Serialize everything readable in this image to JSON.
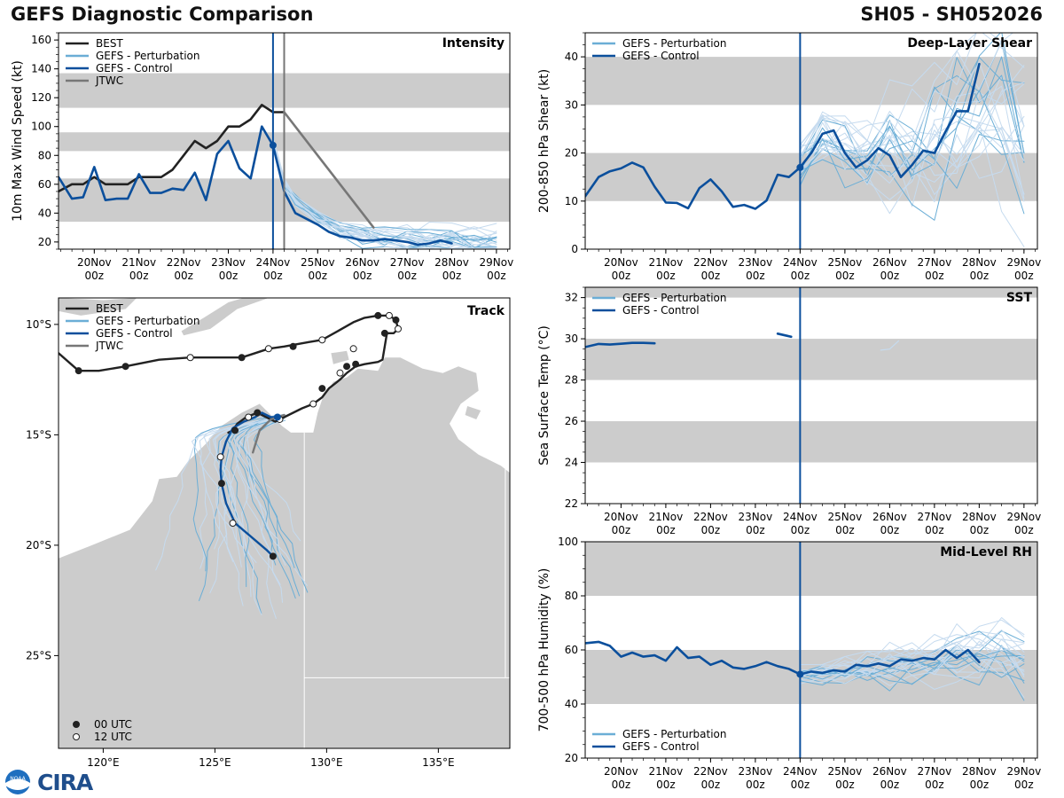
{
  "header": {
    "title_left": "GEFS Diagnostic Comparison",
    "title_right": "SH05 - SH052026"
  },
  "branding": {
    "logo_text": "CIRA",
    "noaa_text": "NOAA"
  },
  "colors": {
    "best": "#222222",
    "perturbation": "#6baed6",
    "control": "#0b4f9c",
    "jtwc": "#777777",
    "band": "#cccccc",
    "land": "#cccccc",
    "perturbation_faint": "#c6dbef"
  },
  "time_axis": {
    "start_day": 19.2,
    "end_day": 29.3,
    "now_day": 24.0,
    "ticks": [
      {
        "day": 20,
        "label": "20Nov",
        "label2": "00z"
      },
      {
        "day": 21,
        "label": "21Nov",
        "label2": "00z"
      },
      {
        "day": 22,
        "label": "22Nov",
        "label2": "00z"
      },
      {
        "day": 23,
        "label": "23Nov",
        "label2": "00z"
      },
      {
        "day": 24,
        "label": "24Nov",
        "label2": "00z"
      },
      {
        "day": 25,
        "label": "25Nov",
        "label2": "00z"
      },
      {
        "day": 26,
        "label": "26Nov",
        "label2": "00z"
      },
      {
        "day": 27,
        "label": "27Nov",
        "label2": "00z"
      },
      {
        "day": 28,
        "label": "28Nov",
        "label2": "00z"
      },
      {
        "day": 29,
        "label": "29Nov",
        "label2": "00z"
      }
    ]
  },
  "chart_data": [
    {
      "type": "line",
      "id": "intensity",
      "title": "Intensity",
      "ylabel": "10m Max Wind Speed (kt)",
      "ylim": [
        15,
        165
      ],
      "yticks": [
        20,
        40,
        60,
        80,
        100,
        120,
        140,
        160
      ],
      "bands": [
        [
          34,
          64
        ],
        [
          83,
          96
        ],
        [
          113,
          137
        ]
      ],
      "jtwc_vline_day": 24.25,
      "legend": [
        "BEST",
        "GEFS - Perturbation",
        "GEFS - Control",
        "JTWC"
      ],
      "series": [
        {
          "name": "BEST",
          "x": [
            19.2,
            19.5,
            19.75,
            20.0,
            20.25,
            20.5,
            20.75,
            21.0,
            21.25,
            21.5,
            21.75,
            22.0,
            22.25,
            22.5,
            22.75,
            23.0,
            23.25,
            23.5,
            23.75,
            24.0,
            24.25
          ],
          "y": [
            55,
            60,
            60,
            65,
            60,
            60,
            60,
            65,
            65,
            65,
            70,
            80,
            90,
            85,
            90,
            100,
            100,
            105,
            115,
            110,
            110
          ]
        },
        {
          "name": "GEFS - Control",
          "x": [
            19.2,
            19.5,
            19.75,
            20.0,
            20.25,
            20.5,
            20.75,
            21.0,
            21.25,
            21.5,
            21.75,
            22.0,
            22.25,
            22.5,
            22.75,
            23.0,
            23.25,
            23.5,
            23.75,
            24.0,
            24.25,
            24.5,
            24.75,
            25.0,
            25.25,
            25.5,
            25.75,
            26.0,
            26.25,
            26.5,
            26.75,
            27.0,
            27.25,
            27.5,
            27.75,
            28.0
          ],
          "y": [
            65,
            50,
            51,
            72,
            49,
            50,
            50,
            67,
            54,
            54,
            57,
            56,
            68,
            49,
            81,
            90,
            71,
            64,
            100,
            87,
            55,
            40,
            36,
            32,
            27,
            24,
            23,
            21,
            21,
            22,
            21,
            20,
            18,
            19,
            21,
            19
          ]
        },
        {
          "name": "JTWC",
          "x": [
            24.25,
            25.0,
            25.75,
            26.25
          ],
          "y": [
            110,
            80,
            50,
            30
          ]
        },
        {
          "name": "GEFS - Perturbation",
          "member": "ensemble (approx.)",
          "x": [
            24.0,
            24.25,
            24.5,
            25.0,
            25.5,
            26.0,
            26.5,
            27.0,
            27.5,
            28.0,
            28.5,
            29.0
          ],
          "y": [
            90,
            60,
            48,
            36,
            28,
            24,
            23,
            22,
            21,
            20,
            19,
            18
          ]
        }
      ]
    },
    {
      "type": "line",
      "id": "shear",
      "title": "Deep-Layer Shear",
      "ylabel": "200-850 hPa Shear (kt)",
      "ylim": [
        0,
        45
      ],
      "yticks": [
        0,
        10,
        20,
        30,
        40
      ],
      "bands": [
        [
          10,
          20
        ],
        [
          30,
          40
        ]
      ],
      "legend": [
        "GEFS - Perturbation",
        "GEFS - Control"
      ],
      "series": [
        {
          "name": "GEFS - Control",
          "x": [
            19.2,
            19.5,
            19.75,
            20.0,
            20.25,
            20.5,
            20.75,
            21.0,
            21.25,
            21.5,
            21.75,
            22.0,
            22.25,
            22.5,
            22.75,
            23.0,
            23.25,
            23.5,
            23.75,
            24.0,
            24.25,
            24.5,
            24.75,
            25.0,
            25.25,
            25.5,
            25.75,
            26.0,
            26.25,
            26.5,
            26.75,
            27.0,
            27.25,
            27.5,
            27.75,
            28.0
          ],
          "y": [
            11,
            15,
            16.2,
            16.8,
            18,
            17,
            13,
            9.7,
            9.6,
            8.5,
            12.7,
            14.5,
            12.0,
            8.8,
            9.2,
            8.4,
            10.1,
            15.5,
            15.0,
            17.0,
            20,
            24,
            24.7,
            20,
            17,
            18.5,
            21,
            19.5,
            15,
            17.5,
            20.5,
            20,
            24.5,
            28.7,
            28.7,
            38.5
          ]
        },
        {
          "name": "GEFS - Perturbation",
          "member": "ensemble (approx.)",
          "x": [
            24.0,
            24.5,
            25.0,
            25.5,
            26.0,
            26.5,
            27.0,
            27.5,
            28.0,
            28.5,
            29.0
          ],
          "y": [
            18,
            24,
            22,
            19,
            21,
            20,
            22,
            26,
            30,
            28,
            24
          ]
        }
      ]
    },
    {
      "type": "line",
      "id": "sst",
      "title": "SST",
      "ylabel": "Sea Surface Temp (°C)",
      "ylim": [
        22,
        32.5
      ],
      "yticks": [
        22,
        24,
        26,
        28,
        30,
        32
      ],
      "bands": [
        [
          24,
          26
        ],
        [
          28,
          30
        ],
        [
          32,
          33
        ]
      ],
      "legend": [
        "GEFS - Perturbation",
        "GEFS - Control"
      ],
      "series": [
        {
          "name": "GEFS - Control",
          "x": [
            19.2,
            19.5,
            19.75,
            20.0,
            20.25,
            20.5,
            20.75
          ],
          "y": [
            29.6,
            29.75,
            29.72,
            29.76,
            29.8,
            29.8,
            29.78
          ]
        },
        {
          "name": "GEFS - Control (segment)",
          "x": [
            23.5,
            23.8
          ],
          "y": [
            30.25,
            30.1
          ]
        },
        {
          "name": "GEFS - Perturbation",
          "member": "ensemble fragments (approx.)",
          "x": [
            25.8,
            26.0,
            26.2
          ],
          "y": [
            29.45,
            29.5,
            29.9
          ]
        }
      ]
    },
    {
      "type": "line",
      "id": "rh",
      "title": "Mid-Level RH",
      "ylabel": "700-500 hPa Humidity (%)",
      "ylim": [
        20,
        100
      ],
      "yticks": [
        20,
        40,
        60,
        80,
        100
      ],
      "bands": [
        [
          40,
          60
        ],
        [
          80,
          100
        ]
      ],
      "legend": [
        "GEFS - Perturbation",
        "GEFS - Control"
      ],
      "series": [
        {
          "name": "GEFS - Control",
          "x": [
            19.2,
            19.5,
            19.75,
            20.0,
            20.25,
            20.5,
            20.75,
            21.0,
            21.25,
            21.5,
            21.75,
            22.0,
            22.25,
            22.5,
            22.75,
            23.0,
            23.25,
            23.5,
            23.75,
            24.0,
            24.25,
            24.5,
            24.75,
            25.0,
            25.25,
            25.5,
            25.75,
            26.0,
            26.25,
            26.5,
            26.75,
            27.0,
            27.25,
            27.5,
            27.75,
            28.0
          ],
          "y": [
            62.5,
            63,
            61.5,
            57.5,
            59,
            57.5,
            58,
            56,
            61,
            57,
            57.5,
            54.5,
            56,
            53.5,
            53,
            54,
            55.5,
            54,
            53,
            51,
            52,
            51.5,
            52.5,
            52,
            54.5,
            54,
            55,
            54,
            56.5,
            56,
            57,
            56.5,
            60,
            57,
            60,
            55.5
          ]
        },
        {
          "name": "GEFS - Perturbation",
          "member": "ensemble (approx.)",
          "x": [
            24.0,
            24.5,
            25.0,
            25.5,
            26.0,
            26.5,
            27.0,
            27.5,
            28.0,
            28.5,
            29.0
          ],
          "y": [
            51,
            51,
            52,
            53,
            54,
            55,
            56,
            58,
            58,
            59,
            55
          ]
        }
      ]
    },
    {
      "type": "scatter",
      "id": "track",
      "title": "Track",
      "xlim": [
        118,
        138.2
      ],
      "ylim": [
        -29.2,
        -8.8
      ],
      "xticks": [
        {
          "lon": 120,
          "label": "120°E"
        },
        {
          "lon": 125,
          "label": "125°E"
        },
        {
          "lon": 130,
          "label": "130°E"
        },
        {
          "lon": 135,
          "label": "135°E"
        }
      ],
      "yticks": [
        {
          "lat": -10,
          "label": "10°S"
        },
        {
          "lat": -15,
          "label": "15°S"
        },
        {
          "lat": -20,
          "label": "20°S"
        },
        {
          "lat": -25,
          "label": "25°S"
        }
      ],
      "legend": [
        "BEST",
        "GEFS - Perturbation",
        "GEFS - Control",
        "JTWC"
      ],
      "marker_legend": [
        "00 UTC",
        "12 UTC"
      ],
      "series": [
        {
          "name": "BEST",
          "lon": [
            118.0,
            118.9,
            119.8,
            121.0,
            122.5,
            123.9,
            126.2,
            126.8,
            127.4,
            128.1,
            129.2,
            129.8,
            130.5,
            131.2,
            131.7,
            132.3,
            132.8,
            133.1,
            133.2,
            133.0,
            132.7,
            132.6,
            132.5,
            132.3,
            131.7,
            131.3,
            130.9,
            130.6,
            130.1,
            129.8,
            129.4,
            128.9,
            128.5,
            128.1,
            127.7,
            127.3,
            126.9,
            126.4,
            126.0,
            125.8,
            125.6
          ],
          "lat": [
            -11.3,
            -12.1,
            -12.1,
            -11.9,
            -11.6,
            -11.5,
            -11.5,
            -11.3,
            -11.1,
            -11.0,
            -10.8,
            -10.7,
            -10.3,
            -9.9,
            -9.7,
            -9.6,
            -9.6,
            -9.8,
            -10.2,
            -10.4,
            -10.4,
            -11.0,
            -11.6,
            -11.7,
            -11.8,
            -11.9,
            -12.2,
            -12.5,
            -12.9,
            -13.3,
            -13.6,
            -13.8,
            -14.0,
            -14.2,
            -14.4,
            -14.2,
            -14.0,
            -14.2,
            -14.5,
            -14.8,
            -14.9
          ]
        },
        {
          "name": "GEFS - Control",
          "lon": [
            127.8,
            127.5,
            127.1,
            126.8,
            126.3,
            125.8,
            125.5,
            125.3,
            125.25,
            125.3,
            125.5,
            125.9,
            126.6,
            127.3,
            127.6
          ],
          "lat": [
            -14.2,
            -14.2,
            -14.0,
            -14.2,
            -14.4,
            -14.7,
            -15.3,
            -16.0,
            -16.6,
            -17.2,
            -18.1,
            -19.0,
            -19.6,
            -20.2,
            -20.5
          ]
        },
        {
          "name": "JTWC",
          "lon": [
            128.1,
            127.5,
            127.0,
            126.7
          ],
          "lat": [
            -14.1,
            -14.3,
            -14.8,
            -15.8
          ]
        },
        {
          "name": "00 UTC",
          "lon": [
            118.9,
            121.0,
            126.2,
            128.5,
            129.8,
            130.9,
            131.3,
            132.3,
            133.1,
            132.6,
            125.9,
            126.9,
            125.3,
            127.6
          ],
          "lat": [
            -12.1,
            -11.9,
            -11.5,
            -11.0,
            -12.9,
            -11.9,
            -11.8,
            -9.6,
            -9.8,
            -10.4,
            -14.8,
            -14.0,
            -17.2,
            -20.5
          ]
        },
        {
          "name": "12 UTC",
          "lon": [
            123.9,
            127.4,
            129.8,
            130.6,
            131.2,
            132.8,
            133.2,
            129.4,
            127.9,
            126.5,
            125.25,
            125.8
          ],
          "lat": [
            -11.5,
            -11.1,
            -10.7,
            -12.2,
            -11.1,
            -9.6,
            -10.2,
            -13.6,
            -14.3,
            -14.2,
            -16.0,
            -19.0
          ]
        }
      ]
    }
  ]
}
